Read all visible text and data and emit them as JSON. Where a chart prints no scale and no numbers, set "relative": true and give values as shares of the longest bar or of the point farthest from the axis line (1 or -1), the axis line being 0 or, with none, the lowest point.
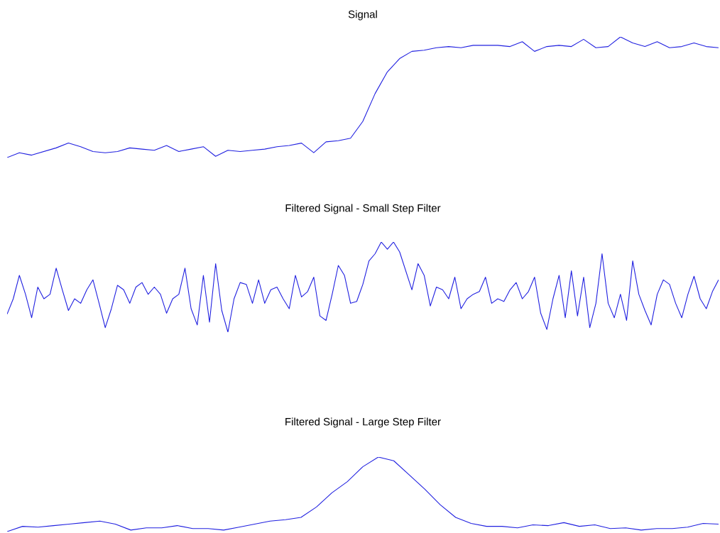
{
  "chart_data": [
    {
      "type": "line",
      "title": "Signal",
      "relative": true,
      "color": "#2020e0",
      "categories": [
        null,
        null,
        null,
        null,
        null,
        null,
        null,
        null,
        null,
        null,
        null,
        null,
        null,
        null,
        null,
        null,
        null,
        null,
        null,
        null,
        null,
        null,
        null,
        null,
        null,
        null,
        null,
        null,
        null,
        null,
        null,
        null,
        null,
        null,
        null,
        null,
        null,
        null,
        null,
        null,
        null,
        null,
        null,
        null,
        null,
        null,
        null,
        null,
        null,
        null,
        null,
        null,
        null,
        null,
        null,
        null,
        null,
        null,
        null
      ],
      "values": [
        0,
        0.04,
        0.02,
        0.05,
        0.08,
        0.12,
        0.09,
        0.05,
        0.04,
        0.05,
        0.08,
        0.07,
        0.06,
        0.1,
        0.05,
        0.07,
        0.09,
        0.01,
        0.06,
        0.05,
        0.06,
        0.07,
        0.09,
        0.1,
        0.12,
        0.04,
        0.13,
        0.14,
        0.16,
        0.3,
        0.53,
        0.71,
        0.82,
        0.88,
        0.89,
        0.91,
        0.92,
        0.91,
        0.93,
        0.93,
        0.93,
        0.92,
        0.96,
        0.88,
        0.92,
        0.93,
        0.92,
        0.98,
        0.91,
        0.92,
        1,
        0.95,
        0.92,
        0.96,
        0.91,
        0.92,
        0.95,
        0.92,
        0.91
      ]
    },
    {
      "type": "line",
      "title": "Filtered Signal - Small Step Filter",
      "relative": true,
      "color": "#2020e0",
      "categories": [
        null,
        null,
        null,
        null,
        null,
        null,
        null,
        null,
        null,
        null,
        null,
        null,
        null,
        null,
        null,
        null,
        null,
        null,
        null,
        null,
        null,
        null,
        null,
        null,
        null,
        null,
        null,
        null,
        null,
        null,
        null,
        null,
        null,
        null,
        null,
        null,
        null,
        null,
        null,
        null,
        null,
        null,
        null,
        null,
        null,
        null,
        null,
        null,
        null,
        null,
        null,
        null,
        null,
        null,
        null,
        null,
        null,
        null,
        null,
        null,
        null,
        null,
        null,
        null,
        null,
        null,
        null,
        null,
        null,
        null,
        null,
        null,
        null,
        null,
        null,
        null,
        null,
        null,
        null,
        null,
        null,
        null,
        null,
        null,
        null,
        null,
        null,
        null,
        null,
        null,
        null,
        null,
        null,
        null,
        null,
        null,
        null,
        null,
        null,
        null,
        null,
        null,
        null,
        null,
        null,
        null,
        null,
        null,
        null,
        null,
        null,
        null,
        null,
        null,
        null,
        null,
        null
      ],
      "values": [
        0.2,
        0.37,
        0.63,
        0.42,
        0.16,
        0.5,
        0.37,
        0.42,
        0.71,
        0.47,
        0.24,
        0.37,
        0.32,
        0.47,
        0.58,
        0.32,
        0.05,
        0.26,
        0.52,
        0.47,
        0.32,
        0.5,
        0.55,
        0.42,
        0.5,
        0.42,
        0.21,
        0.37,
        0.42,
        0.71,
        0.26,
        0.08,
        0.63,
        0.11,
        0.76,
        0.24,
        0,
        0.37,
        0.55,
        0.53,
        0.32,
        0.58,
        0.32,
        0.47,
        0.5,
        0.37,
        0.26,
        0.63,
        0.39,
        0.45,
        0.61,
        0.18,
        0.13,
        0.42,
        0.74,
        0.63,
        0.32,
        0.34,
        0.53,
        0.79,
        0.87,
        1,
        0.92,
        1,
        0.89,
        0.68,
        0.47,
        0.76,
        0.63,
        0.29,
        0.5,
        0.47,
        0.37,
        0.61,
        0.26,
        0.37,
        0.42,
        0.45,
        0.61,
        0.32,
        0.37,
        0.34,
        0.47,
        0.55,
        0.37,
        0.45,
        0.61,
        0.21,
        0.03,
        0.37,
        0.63,
        0.16,
        0.68,
        0.18,
        0.61,
        0.05,
        0.32,
        0.87,
        0.32,
        0.16,
        0.42,
        0.13,
        0.79,
        0.42,
        0.24,
        0.08,
        0.42,
        0.58,
        0.53,
        0.32,
        0.16,
        0.42,
        0.62,
        0.37,
        0.26,
        0.45,
        0.58
      ]
    },
    {
      "type": "line",
      "title": "Filtered Signal - Large Step Filter",
      "relative": true,
      "color": "#2020e0",
      "categories": [
        null,
        null,
        null,
        null,
        null,
        null,
        null,
        null,
        null,
        null,
        null,
        null,
        null,
        null,
        null,
        null,
        null,
        null,
        null,
        null,
        null,
        null,
        null,
        null,
        null,
        null,
        null,
        null,
        null,
        null,
        null,
        null,
        null,
        null,
        null,
        null,
        null,
        null,
        null,
        null,
        null,
        null,
        null,
        null,
        null,
        null,
        null
      ],
      "values": [
        0,
        0.07,
        0.06,
        0.08,
        0.1,
        0.12,
        0.14,
        0.1,
        0.02,
        0.05,
        0.05,
        0.08,
        0.04,
        0.04,
        0.02,
        0.06,
        0.1,
        0.14,
        0.16,
        0.19,
        0.33,
        0.52,
        0.67,
        0.87,
        1,
        0.95,
        0.76,
        0.57,
        0.36,
        0.19,
        0.11,
        0.07,
        0.07,
        0.05,
        0.09,
        0.08,
        0.12,
        0.07,
        0.09,
        0.04,
        0.05,
        0.02,
        0.04,
        0.04,
        0.06,
        0.11,
        0.1
      ]
    }
  ]
}
